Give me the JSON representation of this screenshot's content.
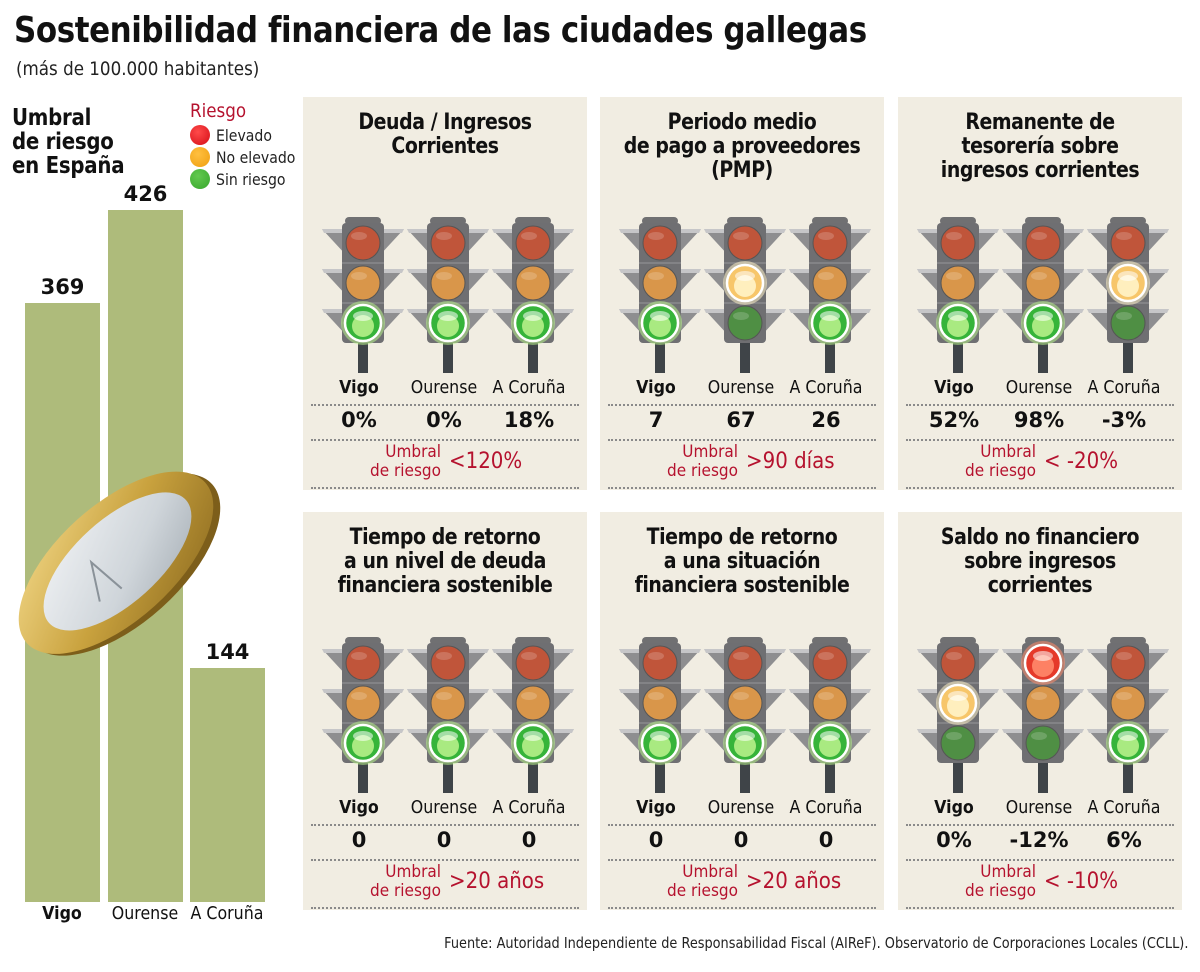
{
  "header": {
    "title": "Sostenibilidad financiera de las ciudades gallegas",
    "subtitle": "(más de 100.000 habitantes)"
  },
  "colors": {
    "bar": "#aebb7b",
    "panel_bg": "#f1ede2",
    "risk_text": "#b5122e",
    "elevado": "#e0161f",
    "no_elevado": "#f2a516",
    "sin_riesgo": "#3fae35"
  },
  "umbral_chart": {
    "title_lines": [
      "Umbral",
      "de riesgo",
      "en España"
    ]
  },
  "legend": {
    "title": "Riesgo",
    "items": [
      {
        "label": "Elevado",
        "color": "#e0161f"
      },
      {
        "label": "No elevado",
        "color": "#f2a516"
      },
      {
        "label": "Sin riesgo",
        "color": "#3fae35"
      }
    ]
  },
  "cities": [
    "Vigo",
    "Ourense",
    "A Coruña"
  ],
  "panels": [
    {
      "title_lines": [
        "Deuda / Ingresos",
        "Corrientes"
      ],
      "values": [
        "0%",
        "0%",
        "18%"
      ],
      "lights": [
        "green",
        "green",
        "green"
      ],
      "risk_label_lines": [
        "Umbral",
        "de riesgo"
      ],
      "risk_threshold": "<120%"
    },
    {
      "title_lines": [
        "Periodo medio",
        "de pago a proveedores",
        "(PMP)"
      ],
      "values": [
        "7",
        "67",
        "26"
      ],
      "lights": [
        "green",
        "yellow",
        "green"
      ],
      "risk_label_lines": [
        "Umbral",
        "de riesgo"
      ],
      "risk_threshold": ">90 días"
    },
    {
      "title_lines": [
        "Remanente de",
        "tesorería sobre",
        "ingresos corrientes"
      ],
      "values": [
        "52%",
        "98%",
        "-3%"
      ],
      "lights": [
        "green",
        "green",
        "yellow"
      ],
      "risk_label_lines": [
        "Umbral",
        "de riesgo"
      ],
      "risk_threshold": "< -20%"
    },
    {
      "title_lines": [
        "Tiempo de retorno",
        "a un nivel de deuda",
        "financiera sostenible"
      ],
      "values": [
        "0",
        "0",
        "0"
      ],
      "lights": [
        "green",
        "green",
        "green"
      ],
      "risk_label_lines": [
        "Umbral",
        "de riesgo"
      ],
      "risk_threshold": ">20 años"
    },
    {
      "title_lines": [
        "Tiempo de retorno",
        "a una situación",
        "financiera sostenible"
      ],
      "values": [
        "0",
        "0",
        "0"
      ],
      "lights": [
        "green",
        "green",
        "green"
      ],
      "risk_label_lines": [
        "Umbral",
        "de riesgo"
      ],
      "risk_threshold": ">20 años"
    },
    {
      "title_lines": [
        "Saldo no financiero",
        "sobre ingresos",
        "corrientes"
      ],
      "values": [
        "0%",
        "-12%",
        "6%"
      ],
      "lights": [
        "yellow",
        "red",
        "green"
      ],
      "risk_label_lines": [
        "Umbral",
        "de riesgo"
      ],
      "risk_threshold": "< -10%"
    }
  ],
  "footer": {
    "source": "Fuente: Autoridad Independiente de Responsabilidad Fiscal (AIReF). Observatorio de Corporaciones Locales (CCLL)."
  },
  "chart_data": [
    {
      "type": "bar",
      "title": "Umbral de riesgo en España",
      "categories": [
        "Vigo",
        "Ourense",
        "A Coruña"
      ],
      "values": [
        369,
        426,
        144
      ],
      "xlabel": "",
      "ylabel": "",
      "grid": false
    },
    {
      "type": "table",
      "title": "Deuda / Ingresos Corrientes",
      "categories": [
        "Vigo",
        "Ourense",
        "A Coruña"
      ],
      "values": [
        "0%",
        "0%",
        "18%"
      ],
      "risk": [
        "Sin riesgo",
        "Sin riesgo",
        "Sin riesgo"
      ],
      "threshold": "<120%"
    },
    {
      "type": "table",
      "title": "Periodo medio de pago a proveedores (PMP)",
      "categories": [
        "Vigo",
        "Ourense",
        "A Coruña"
      ],
      "values": [
        7,
        67,
        26
      ],
      "risk": [
        "Sin riesgo",
        "No elevado",
        "Sin riesgo"
      ],
      "threshold": ">90 días"
    },
    {
      "type": "table",
      "title": "Remanente de tesorería sobre ingresos corrientes",
      "categories": [
        "Vigo",
        "Ourense",
        "A Coruña"
      ],
      "values": [
        "52%",
        "98%",
        "-3%"
      ],
      "risk": [
        "Sin riesgo",
        "Sin riesgo",
        "No elevado"
      ],
      "threshold": "< -20%"
    },
    {
      "type": "table",
      "title": "Tiempo de retorno a un nivel de deuda financiera sostenible",
      "categories": [
        "Vigo",
        "Ourense",
        "A Coruña"
      ],
      "values": [
        0,
        0,
        0
      ],
      "risk": [
        "Sin riesgo",
        "Sin riesgo",
        "Sin riesgo"
      ],
      "threshold": ">20 años"
    },
    {
      "type": "table",
      "title": "Tiempo de retorno a una situación financiera sostenible",
      "categories": [
        "Vigo",
        "Ourense",
        "A Coruña"
      ],
      "values": [
        0,
        0,
        0
      ],
      "risk": [
        "Sin riesgo",
        "Sin riesgo",
        "Sin riesgo"
      ],
      "threshold": ">20 años"
    },
    {
      "type": "table",
      "title": "Saldo no financiero sobre ingresos corrientes",
      "categories": [
        "Vigo",
        "Ourense",
        "A Coruña"
      ],
      "values": [
        "0%",
        "-12%",
        "6%"
      ],
      "risk": [
        "No elevado",
        "Elevado",
        "Sin riesgo"
      ],
      "threshold": "< -10%"
    }
  ]
}
